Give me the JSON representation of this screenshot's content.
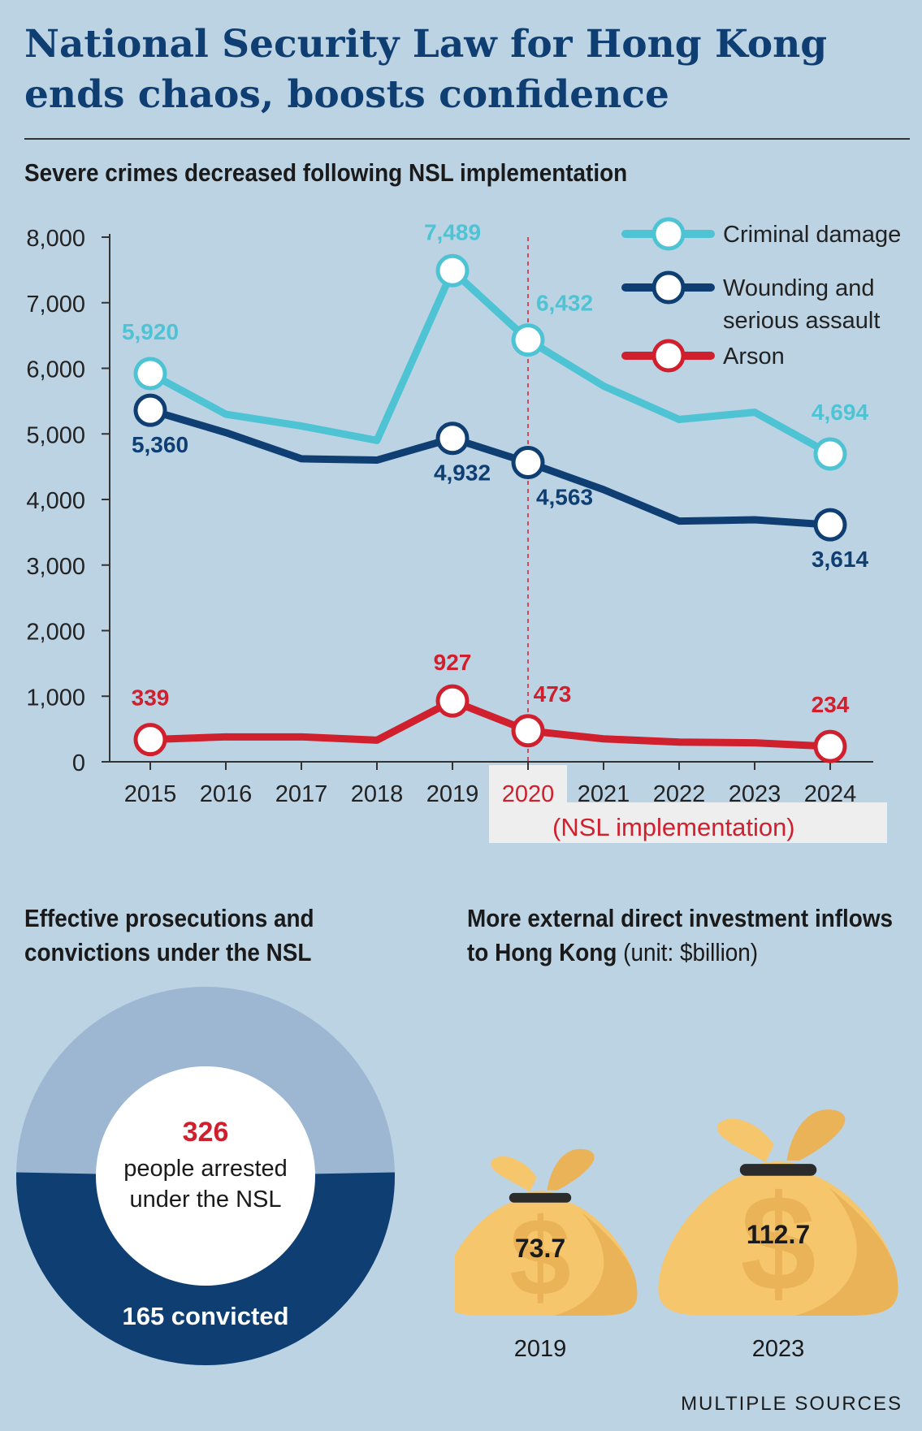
{
  "title": "National Security Law for Hong Kong ends chaos, boosts confidence",
  "source": "MULTIPLE SOURCES",
  "chart_data": [
    {
      "type": "line",
      "title": "Severe crimes decreased following NSL implementation",
      "x": [
        "2015",
        "2016",
        "2017",
        "2018",
        "2019",
        "2020",
        "2021",
        "2022",
        "2023",
        "2024"
      ],
      "ylim": [
        0,
        8000
      ],
      "yticks": [
        "8,000",
        "7,000",
        "6,000",
        "5,000",
        "4,000",
        "3,000",
        "2,000",
        "1,000",
        "0"
      ],
      "annotation": "(NSL implementation)",
      "legend_position": "top-right",
      "series": [
        {
          "name": "Criminal damage",
          "color": "#4dc3d3",
          "values": [
            5920,
            5300,
            5120,
            4900,
            7489,
            6432,
            5730,
            5220,
            5330,
            4694
          ],
          "labels": {
            "0": "5,920",
            "4": "7,489",
            "5": "6,432",
            "9": "4,694"
          }
        },
        {
          "name": "Wounding and serious assault",
          "color": "#0f3f72",
          "values": [
            5360,
            5020,
            4620,
            4600,
            4932,
            4563,
            4150,
            3670,
            3690,
            3614
          ],
          "labels": {
            "0": "5,360",
            "4": "4,932",
            "5": "4,563",
            "9": "3,614"
          }
        },
        {
          "name": "Arson",
          "color": "#d0202e",
          "values": [
            339,
            380,
            380,
            330,
            927,
            473,
            350,
            300,
            290,
            234
          ],
          "labels": {
            "0": "339",
            "4": "927",
            "5": "473",
            "9": "234"
          }
        }
      ]
    },
    {
      "type": "pie",
      "title": "Effective prosecutions and convictions under the NSL",
      "total_value": "326",
      "total_label": "people arrested under the NSL",
      "total_label_lines": [
        "people arrested",
        "under the NSL"
      ],
      "slices": [
        {
          "label": "165 convicted",
          "value": 165,
          "color": "#0f3f72"
        },
        {
          "value": 161,
          "color": "#9db7d3"
        }
      ]
    },
    {
      "type": "bar",
      "title": "More external direct investment inflows to Hong Kong",
      "unit": "(unit: $billion)",
      "categories": [
        "2019",
        "2023"
      ],
      "values": [
        73.7,
        112.7
      ],
      "value_labels": [
        "73.7",
        "112.7"
      ]
    }
  ]
}
